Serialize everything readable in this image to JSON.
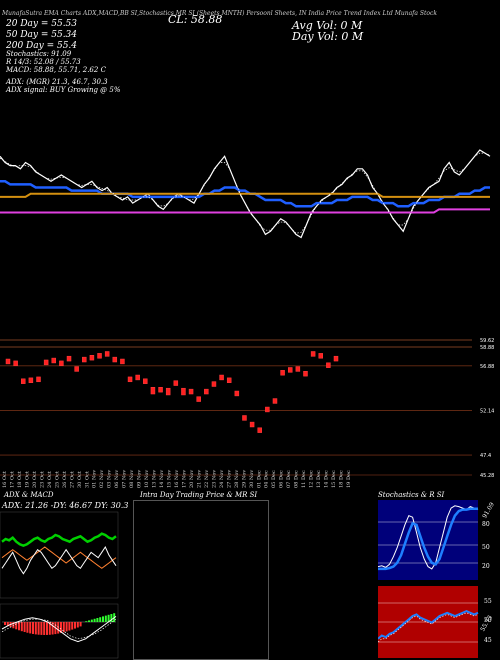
{
  "header": {
    "line1": "MunafaSutra EMA Charts ADX,MACD,BB SI,Stochastics,MR SI (Sheets MNTH) Persoonl Sheets, IN India Price Trend Index Ltd Munafa Stock",
    "ema20": "20 Day = 55.53",
    "cl": "CL: 58.88",
    "avg_vol": "Avg Vol: 0  M",
    "ema50": "50 Day = 55.34",
    "day_vol": "Day Vol: 0   M",
    "ema200": "200 Day = 55.4",
    "stoch_label": "Stochastics: 91.09",
    "stoch_r": "R   14/3: 52.08 / 55.73",
    "macd": "MACD: 58.88, 55.71, 2.62  C",
    "adx": "ADX:                    (MGR) 21.3,  46.7,  30.3",
    "adx_signal": "ADX  signal:                 BUY Growing @ 5%"
  },
  "price_levels": [
    "59.62",
    "58.88",
    "56.88",
    "52.14",
    "47.4",
    "45.28"
  ],
  "chart_data": [
    {
      "type": "line",
      "title": "",
      "series": [
        {
          "name": "",
          "color": "#ffffff",
          "values": [
            70,
            68,
            67,
            67,
            66,
            68,
            67,
            65,
            64,
            63,
            62,
            63,
            64,
            63,
            62,
            61,
            60,
            61,
            62,
            60,
            59,
            60,
            58,
            57,
            56,
            57,
            55,
            56,
            57,
            58,
            56,
            54,
            53,
            55,
            57,
            58,
            57,
            56,
            55,
            58,
            61,
            63,
            66,
            68,
            70,
            66,
            62,
            58,
            55,
            52,
            50,
            48,
            45,
            46,
            48,
            50,
            49,
            47,
            45,
            44,
            48,
            52,
            54,
            56,
            57,
            58,
            60,
            61,
            63,
            64,
            66,
            66,
            64,
            60,
            58,
            55,
            53,
            50,
            48,
            46,
            50,
            54,
            56,
            58,
            60,
            61,
            62,
            66,
            68,
            65,
            64,
            66,
            68,
            70,
            72,
            71,
            70
          ]
        },
        {
          "name": "",
          "color": "#1f5fff",
          "values": [
            62,
            62,
            61,
            61,
            61,
            61,
            61,
            60,
            60,
            60,
            60,
            60,
            60,
            60,
            59,
            59,
            59,
            59,
            59,
            59,
            58,
            58,
            58,
            58,
            58,
            58,
            57,
            57,
            57,
            57,
            57,
            57,
            57,
            57,
            57,
            57,
            57,
            57,
            57,
            57,
            58,
            58,
            59,
            59,
            60,
            60,
            60,
            59,
            59,
            58,
            58,
            57,
            56,
            56,
            56,
            56,
            55,
            55,
            54,
            54,
            54,
            54,
            55,
            55,
            55,
            55,
            56,
            56,
            56,
            57,
            57,
            57,
            57,
            56,
            56,
            55,
            55,
            55,
            54,
            54,
            54,
            55,
            55,
            55,
            56,
            56,
            56,
            57,
            57,
            57,
            58,
            58,
            58,
            59,
            59,
            60,
            60
          ]
        },
        {
          "name": "",
          "color": "#d49010",
          "values": [
            57,
            57,
            57,
            57,
            57,
            57,
            58,
            58,
            58,
            58,
            58,
            58,
            58,
            58,
            58,
            58,
            58,
            58,
            58,
            58,
            58,
            58,
            58,
            58,
            58,
            58,
            58,
            58,
            58,
            58,
            58,
            58,
            58,
            58,
            58,
            58,
            58,
            58,
            58,
            58,
            58,
            58,
            58,
            58,
            58,
            58,
            58,
            58,
            58,
            58,
            58,
            58,
            58,
            58,
            58,
            58,
            58,
            58,
            58,
            58,
            58,
            58,
            58,
            58,
            58,
            58,
            58,
            58,
            58,
            58,
            58,
            58,
            58,
            58,
            58,
            57,
            57,
            57,
            57,
            57,
            57,
            57,
            57,
            57,
            57,
            57,
            57,
            57,
            57,
            57,
            57,
            57,
            57,
            57,
            57,
            57,
            57
          ]
        },
        {
          "name": "",
          "color": "#e040e0",
          "values": [
            52,
            52,
            52,
            52,
            52,
            52,
            52,
            52,
            52,
            52,
            52,
            52,
            52,
            52,
            52,
            52,
            52,
            52,
            52,
            52,
            52,
            52,
            52,
            52,
            52,
            52,
            52,
            52,
            52,
            52,
            52,
            52,
            52,
            52,
            52,
            52,
            52,
            52,
            52,
            52,
            52,
            52,
            52,
            52,
            52,
            52,
            52,
            52,
            52,
            52,
            52,
            52,
            52,
            52,
            52,
            52,
            52,
            52,
            52,
            52,
            52,
            52,
            52,
            52,
            52,
            52,
            52,
            52,
            52,
            52,
            52,
            52,
            52,
            52,
            52,
            52,
            52,
            52,
            52,
            52,
            52,
            52,
            52,
            52,
            52,
            52,
            53,
            53,
            53,
            53,
            53,
            53,
            53,
            53,
            53,
            53,
            53
          ]
        }
      ]
    },
    {
      "type": "bar",
      "title": "",
      "ylim": [
        45.28,
        59.62
      ],
      "ytick_labels": [
        "59.62",
        "58.88",
        "56.88",
        "52.14",
        "47.4",
        "45.28"
      ],
      "candles": [
        [
          57.6,
          57.4
        ],
        [
          57.4,
          57.2
        ],
        [
          55.5,
          55.3
        ],
        [
          55.6,
          55.4
        ],
        [
          55.7,
          55.5
        ],
        [
          57.5,
          57.3
        ],
        [
          57.7,
          57.5
        ],
        [
          57.4,
          57.2
        ],
        [
          57.9,
          57.7
        ],
        [
          56.8,
          56.6
        ],
        [
          57.8,
          57.6
        ],
        [
          58.0,
          57.8
        ],
        [
          58.2,
          58.0
        ],
        [
          58.4,
          58.2
        ],
        [
          57.8,
          57.6
        ],
        [
          57.6,
          57.4
        ],
        [
          55.7,
          55.5
        ],
        [
          55.9,
          55.7
        ],
        [
          55.5,
          55.3
        ],
        [
          54.6,
          54.2
        ],
        [
          54.6,
          54.4
        ],
        [
          54.5,
          54.1
        ],
        [
          55.3,
          55.1
        ],
        [
          54.5,
          54.1
        ],
        [
          54.4,
          54.2
        ],
        [
          53.6,
          53.4
        ],
        [
          54.4,
          54.2
        ],
        [
          55.2,
          55.0
        ],
        [
          55.9,
          55.7
        ],
        [
          55.6,
          55.4
        ],
        [
          54.2,
          54.0
        ],
        [
          51.6,
          51.4
        ],
        [
          50.9,
          50.7
        ],
        [
          50.3,
          50.1
        ],
        [
          52.5,
          52.3
        ],
        [
          53.4,
          53.2
        ],
        [
          56.4,
          56.2
        ],
        [
          56.7,
          56.5
        ],
        [
          56.8,
          56.6
        ],
        [
          56.3,
          56.1
        ],
        [
          58.4,
          58.2
        ],
        [
          58.2,
          58.0
        ],
        [
          57.2,
          57.0
        ],
        [
          57.9,
          57.7
        ]
      ]
    },
    {
      "type": "line",
      "title": "ADX  & MACD",
      "series": [
        {
          "name": "",
          "color": "#00d000",
          "values": [
            60,
            62,
            61,
            63,
            60,
            58,
            57,
            58,
            60,
            62,
            63,
            61,
            60,
            62,
            63,
            65,
            64,
            62,
            61,
            60,
            62,
            63,
            64,
            62,
            60,
            61,
            63,
            64,
            66,
            65,
            63,
            62,
            64
          ]
        },
        {
          "name": "",
          "color": "#ff8030",
          "values": [
            48,
            50,
            52,
            54,
            52,
            50,
            48,
            46,
            48,
            50,
            52,
            54,
            56,
            54,
            52,
            50,
            48,
            46,
            44,
            46,
            48,
            50,
            52,
            50,
            48,
            46,
            44,
            42,
            40,
            42,
            44,
            46,
            48
          ]
        },
        {
          "name": "",
          "color": "#ffffff",
          "values": [
            40,
            44,
            48,
            52,
            46,
            40,
            36,
            40,
            46,
            50,
            54,
            52,
            48,
            44,
            40,
            42,
            46,
            50,
            54,
            50,
            46,
            42,
            40,
            44,
            48,
            52,
            50,
            48,
            52,
            56,
            50,
            46,
            42
          ]
        }
      ]
    },
    {
      "type": "area",
      "title": "Stochastics & R    SI",
      "series": [
        {
          "name": "",
          "color": "#ffffff",
          "values": [
            15,
            16,
            14,
            18,
            28,
            40,
            55,
            70,
            82,
            80,
            60,
            40,
            25,
            15,
            12,
            20,
            40,
            60,
            80,
            92,
            95,
            94,
            92,
            90,
            94,
            92,
            90
          ]
        },
        {
          "name": "",
          "color": "#1f7fff",
          "values": [
            12,
            12,
            12,
            13,
            15,
            20,
            30,
            45,
            60,
            72,
            70,
            55,
            40,
            28,
            20,
            18,
            25,
            40,
            55,
            70,
            82,
            88,
            90,
            90,
            91,
            91,
            91
          ]
        }
      ]
    }
  ],
  "panels": {
    "adx_macd_title": "ADX  & MACD",
    "adx_text": "ADX: 21.26  -DY: 46.67  DY: 30.3",
    "intraday_title": "Intra  Day Trading Price  & MR                SI",
    "stoch_title": "Stochastics & R                SI",
    "stoch_value": "91.09",
    "stoch_lv_80": "80",
    "stoch_lv_50": "50",
    "stoch_lv_20": "20",
    "rsi_value": "55.73",
    "rsi_lv_55": "55",
    "rsi_lv_50": "50",
    "rsi_lv_45": "45"
  },
  "dates": [
    "16 Oct",
    "17 Oct",
    "18 Oct",
    "19 Oct",
    "20 Oct",
    "23 Oct",
    "24 Oct",
    "25 Oct",
    "26 Oct",
    "27 Oct",
    "30 Oct",
    "31 Oct",
    "01 Nov",
    "02 Nov",
    "03 Nov",
    "06 Nov",
    "07 Nov",
    "08 Nov",
    "09 Nov",
    "10 Nov",
    "13 Nov",
    "14 Nov",
    "15 Nov",
    "16 Nov",
    "17 Nov",
    "20 Nov",
    "21 Nov",
    "22 Nov",
    "23 Nov",
    "24 Nov",
    "27 Nov",
    "28 Nov",
    "29 Nov",
    "30 Nov",
    "01 Dec",
    "04 Dec",
    "05 Dec",
    "06 Dec",
    "07 Dec",
    "08 Dec",
    "11 Dec",
    "12 Dec",
    "13 Dec",
    "14 Dec",
    "15 Dec",
    "18 Dec",
    "19 Dec"
  ]
}
